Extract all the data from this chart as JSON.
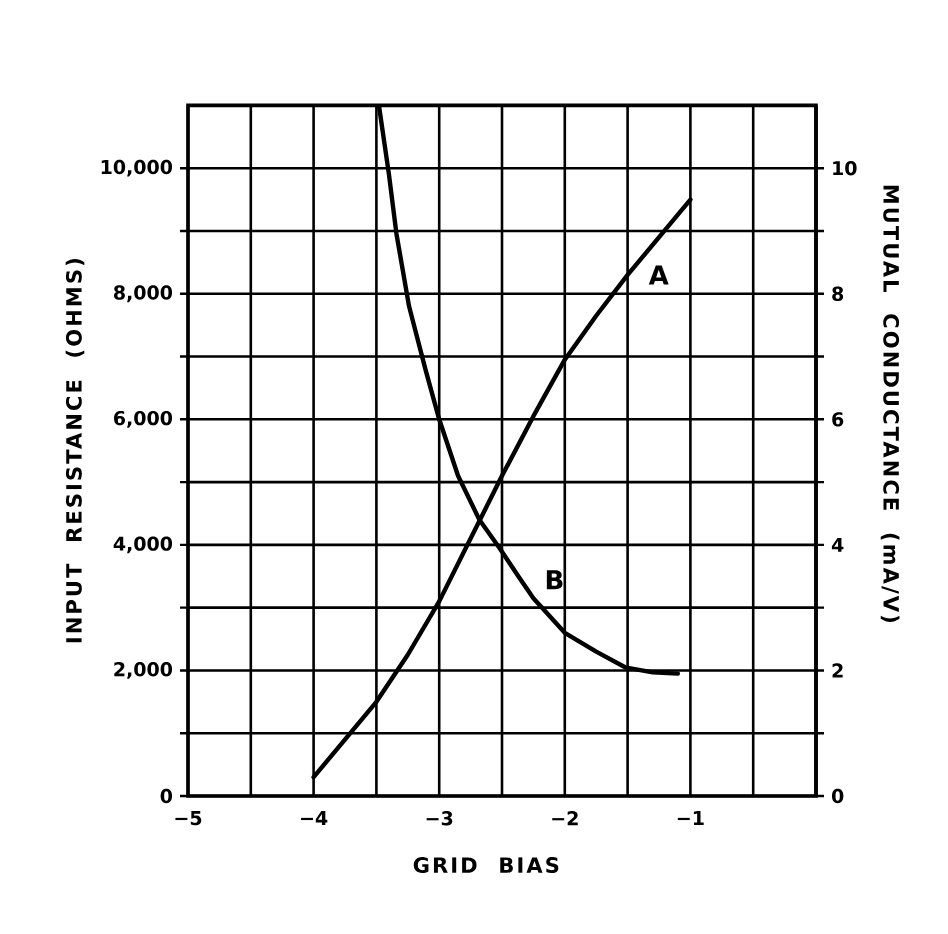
{
  "chart_data": {
    "type": "line",
    "xlabel": "GRID BIAS",
    "ylabel": "INPUT RESISTANCE (OHMS)",
    "y2label": "MUTUAL CONDUCTANCE (mA/V)",
    "xlim": [
      -5,
      0
    ],
    "ylim": [
      0,
      11000
    ],
    "y2lim": [
      0,
      11
    ],
    "xticks": [
      {
        "value": -5,
        "label": "−5"
      },
      {
        "value": -4.5,
        "label": null
      },
      {
        "value": -4,
        "label": "−4"
      },
      {
        "value": -3.5,
        "label": null
      },
      {
        "value": -3,
        "label": "−3"
      },
      {
        "value": -2.5,
        "label": null
      },
      {
        "value": -2,
        "label": "−2"
      },
      {
        "value": -1.5,
        "label": null
      },
      {
        "value": -1,
        "label": "−1"
      },
      {
        "value": -0.5,
        "label": null
      }
    ],
    "yticks": [
      0,
      {
        "value": 1000,
        "label": null
      },
      {
        "value": 2000,
        "label": "2,000"
      },
      {
        "value": 3000,
        "label": null
      },
      {
        "value": 4000,
        "label": "4,000"
      },
      {
        "value": 5000,
        "label": null
      },
      {
        "value": 6000,
        "label": "6,000"
      },
      {
        "value": 7000,
        "label": null
      },
      {
        "value": 8000,
        "label": "8,000"
      },
      {
        "value": 9000,
        "label": null
      },
      {
        "value": 10000,
        "label": "10,000"
      }
    ],
    "y2ticks": [
      0,
      {
        "value": 1,
        "label": null
      },
      2,
      {
        "value": 3,
        "label": null
      },
      4,
      {
        "value": 5,
        "label": null
      },
      6,
      {
        "value": 7,
        "label": null
      },
      8,
      {
        "value": 9,
        "label": null
      },
      10
    ],
    "grid": true,
    "series": [
      {
        "name": "A",
        "color": "#000000",
        "axis": "y2",
        "x": [
          -4,
          -3.75,
          -3.5,
          -3.25,
          -3,
          -2.75,
          -2.5,
          -2.25,
          -2,
          -1.75,
          -1.5,
          -1.25,
          -1
        ],
        "values": [
          0.3,
          0.9,
          1.5,
          2.25,
          3.1,
          4.1,
          5.1,
          6.05,
          6.95,
          7.65,
          8.3,
          8.9,
          9.5
        ]
      },
      {
        "name": "B",
        "color": "#000000",
        "x": [
          -3.48,
          -3.4,
          -3.34,
          -3.24,
          -3.11,
          -3.0,
          -2.85,
          -2.68,
          -2.52,
          -2.37,
          -2.25,
          -2.0,
          -1.75,
          -1.52,
          -1.3,
          -1.1
        ],
        "values": [
          11000,
          9900,
          8950,
          7800,
          6800,
          6000,
          5100,
          4400,
          3950,
          3500,
          3150,
          2600,
          2300,
          2050,
          1970,
          1950
        ]
      }
    ]
  }
}
